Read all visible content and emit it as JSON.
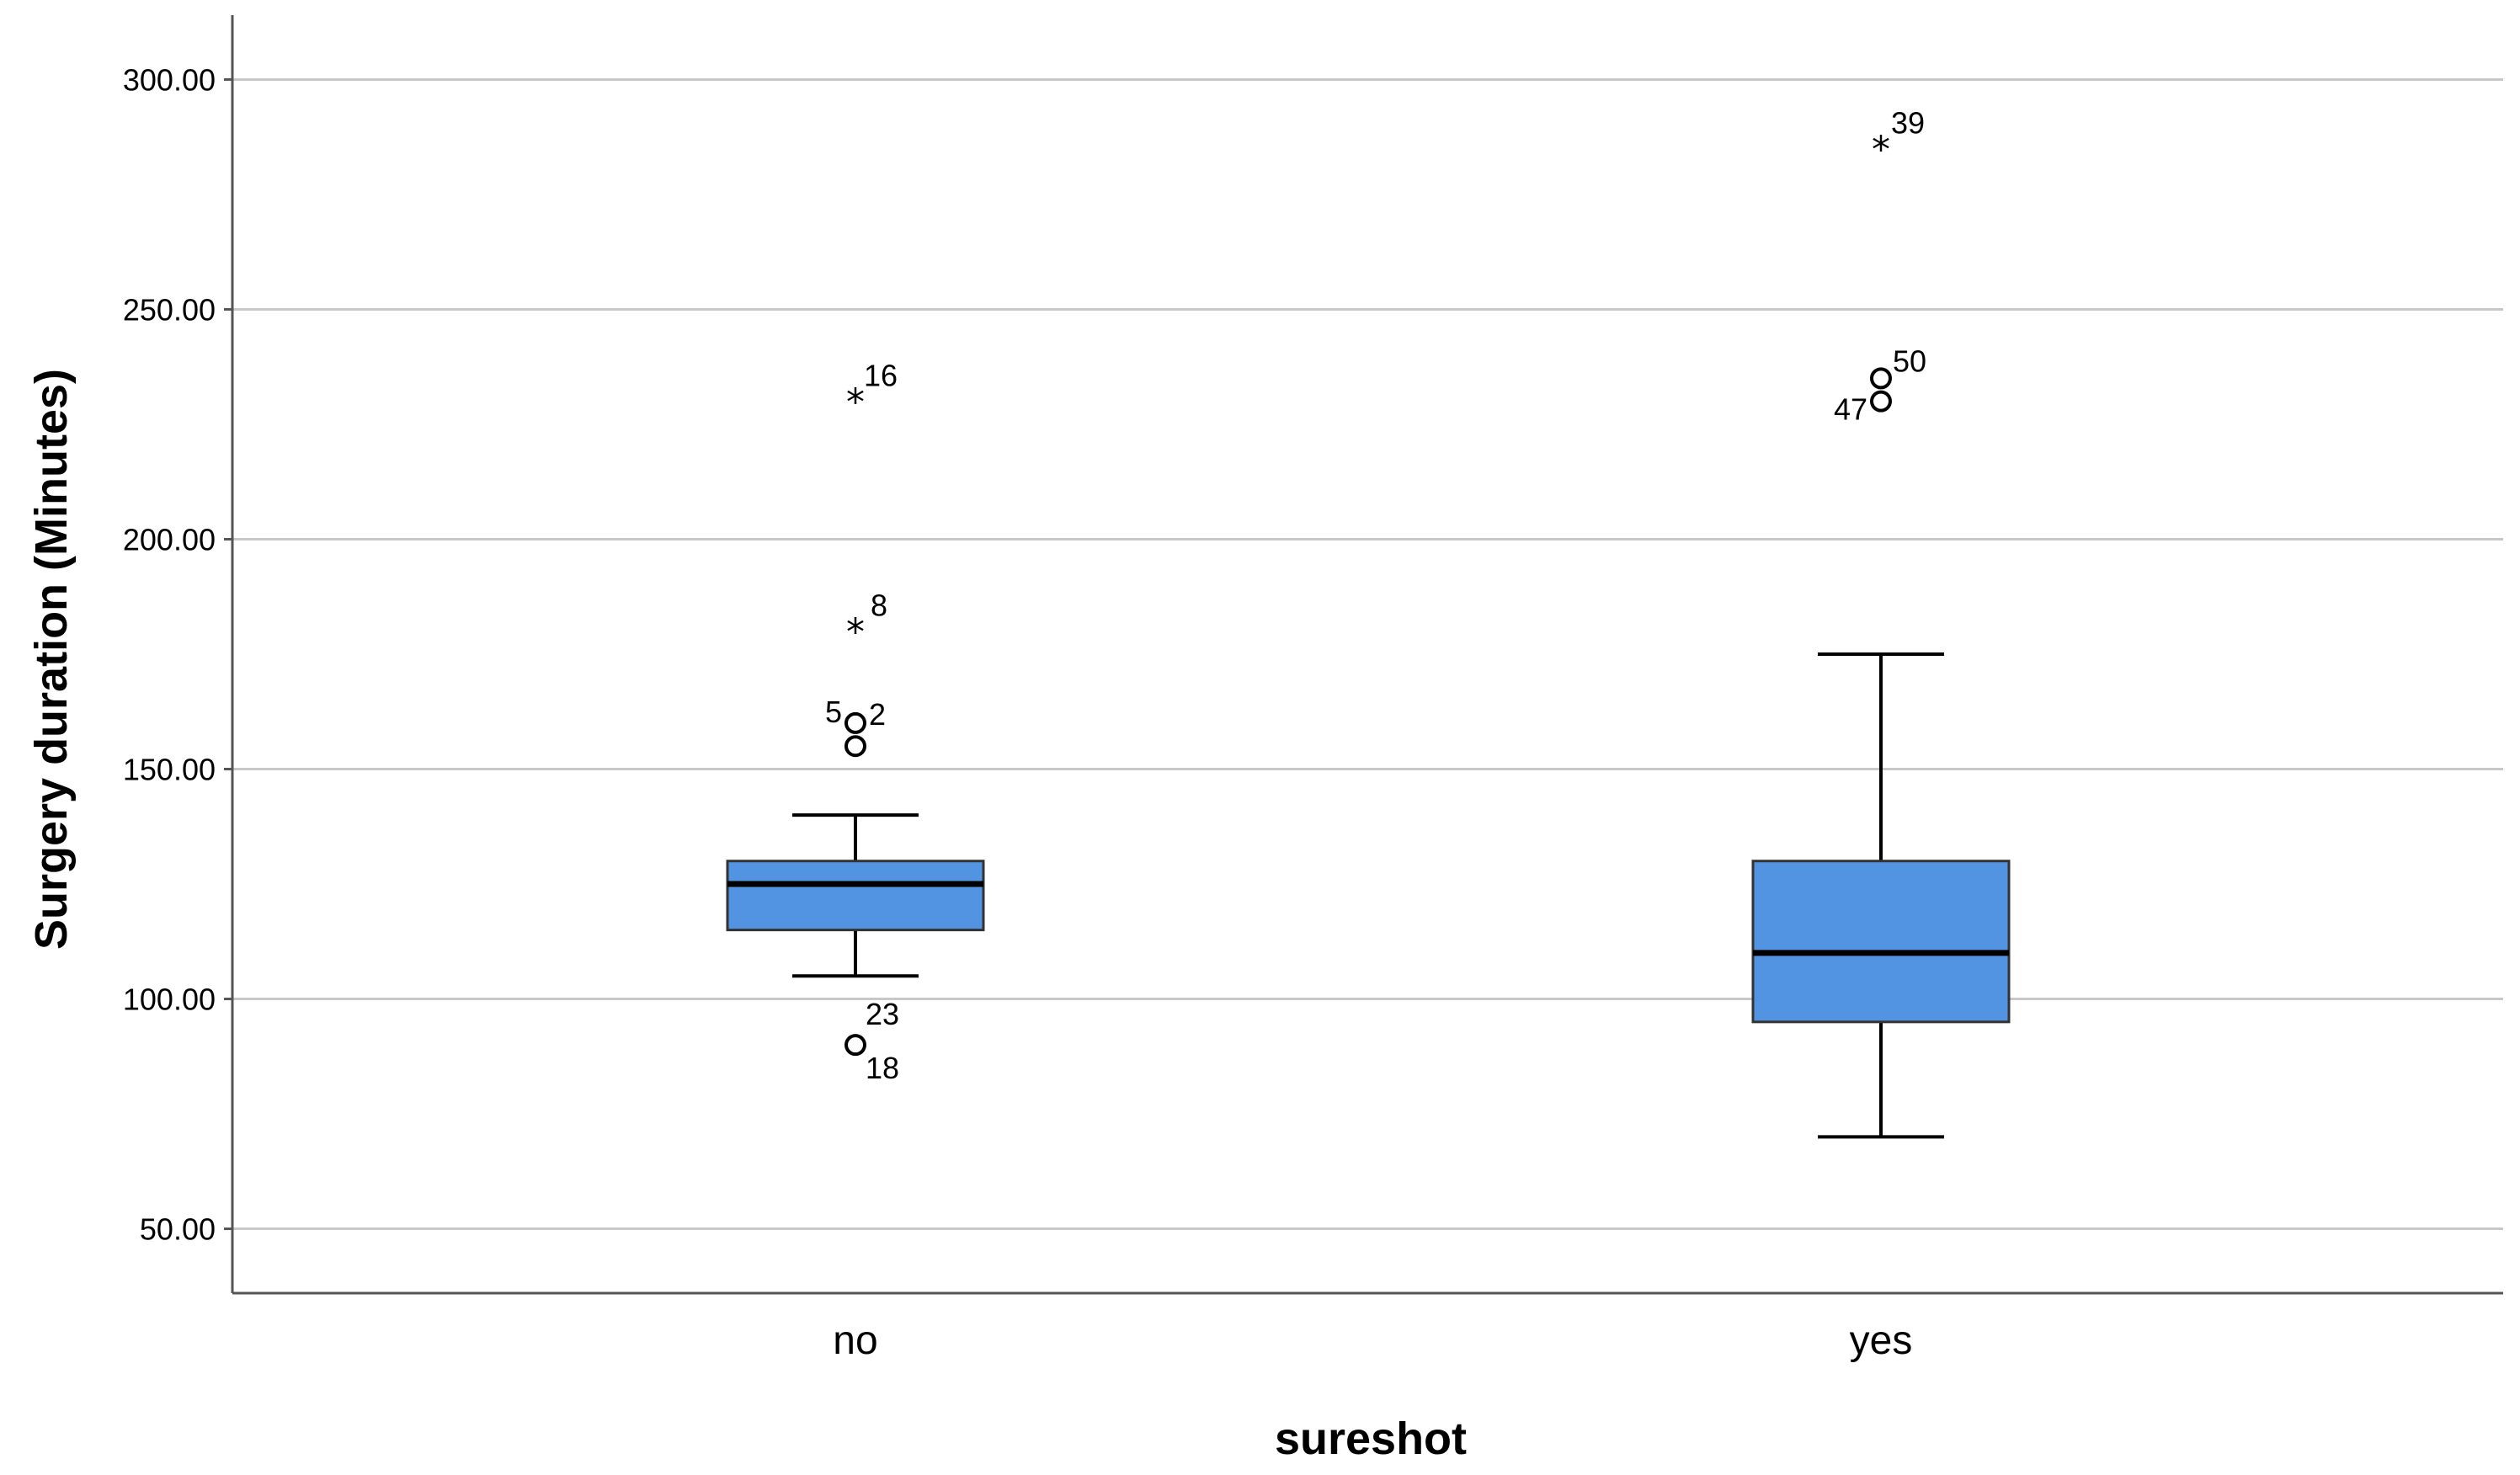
{
  "chart_data": {
    "type": "boxplot",
    "xlabel": "sureshot",
    "ylabel": "Surgery duration (Minutes)",
    "ylim": [
      36,
      314
    ],
    "yticks": [
      50,
      100,
      150,
      200,
      250,
      300
    ],
    "ytick_labels": [
      "50.00",
      "100.00",
      "150.00",
      "200.00",
      "250.00",
      "300.00"
    ],
    "grid": "horizontal",
    "box_color": "#5294E2",
    "categories": [
      "no",
      "yes"
    ],
    "boxes": [
      {
        "category": "no",
        "whisker_low": 105,
        "q1": 115,
        "median": 125,
        "q3": 130,
        "whisker_high": 140,
        "outliers": [
          {
            "value": 230,
            "kind": "extreme",
            "label": "16"
          },
          {
            "value": 180,
            "kind": "extreme",
            "label": "8"
          },
          {
            "value": 160,
            "kind": "outlier",
            "label": "2"
          },
          {
            "value": 155,
            "kind": "outlier",
            "label": "5"
          },
          {
            "value": 90,
            "kind": "outlier",
            "label": "23"
          },
          {
            "value": 90,
            "kind": "outlier",
            "label": "18"
          }
        ]
      },
      {
        "category": "yes",
        "whisker_low": 70,
        "q1": 95,
        "median": 110,
        "q3": 130,
        "whisker_high": 175,
        "outliers": [
          {
            "value": 285,
            "kind": "extreme",
            "label": "39"
          },
          {
            "value": 235,
            "kind": "outlier",
            "label": "50"
          },
          {
            "value": 230,
            "kind": "outlier",
            "label": "47"
          }
        ]
      }
    ]
  }
}
